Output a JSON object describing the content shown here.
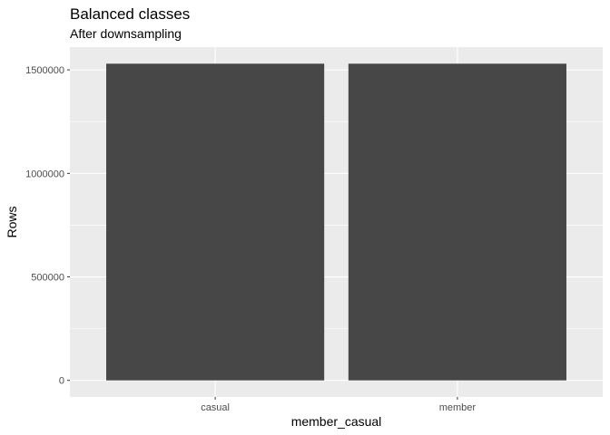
{
  "chart_data": {
    "type": "bar",
    "title": "Balanced classes",
    "subtitle": "After downsampling",
    "xlabel": "member_casual",
    "ylabel": "Rows",
    "categories": [
      "casual",
      "member"
    ],
    "values": [
      1530000,
      1530000
    ],
    "ylim": [
      0,
      1600000
    ],
    "y_ticks": [
      0,
      500000,
      1000000,
      1500000
    ],
    "y_tick_labels": [
      "0",
      "500000",
      "1000000",
      "1500000"
    ],
    "grid": true,
    "legend": "none",
    "colors": {
      "bar": "#474747",
      "panel": "#ebebeb",
      "grid": "#ffffff",
      "tick_text": "#4d4d4d",
      "tick_mark": "#333333"
    }
  }
}
